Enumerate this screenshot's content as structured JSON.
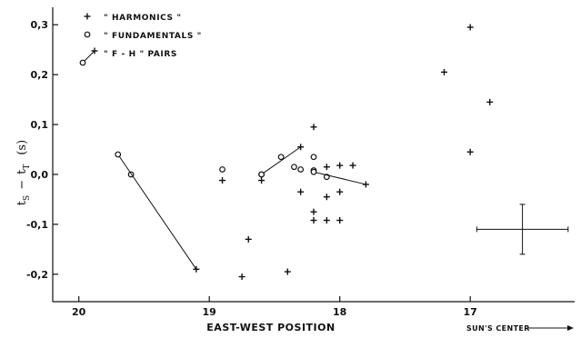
{
  "chart_data": {
    "type": "scatter",
    "title": "",
    "xlabel": "EAST-WEST POSITION",
    "ylabel": "t_S - t_T (s)",
    "ylabel_parts": {
      "main": "t",
      "sub1": "S",
      "minus": "−",
      "main2": "t",
      "sub2": "T",
      "unit": "(s)"
    },
    "x_note": "SUN'S CENTER",
    "xlim": [
      20.2,
      16.2
    ],
    "ylim": [
      -0.255,
      0.335
    ],
    "x_ticks": [
      {
        "value": 20,
        "label": "20"
      },
      {
        "value": 19,
        "label": "19"
      },
      {
        "value": 18,
        "label": "18"
      },
      {
        "value": 17,
        "label": "17"
      }
    ],
    "y_ticks": [
      {
        "value": 0.3,
        "label": "0,3"
      },
      {
        "value": 0.2,
        "label": "0,2"
      },
      {
        "value": 0.1,
        "label": "0,1"
      },
      {
        "value": 0.0,
        "label": "0,0"
      },
      {
        "value": -0.1,
        "label": "-0,1"
      },
      {
        "value": -0.2,
        "label": "-0,2"
      }
    ],
    "legend": [
      {
        "marker": "plus",
        "label": "\" HARMONICS \""
      },
      {
        "marker": "circle",
        "label": "\" FUNDAMENTALS \""
      },
      {
        "marker": "pair",
        "label": "\" F - H \" PAIRS"
      }
    ],
    "legend_placement": "top-left",
    "series": [
      {
        "name": "HARMONICS",
        "marker": "plus",
        "points": [
          [
            17.0,
            0.295
          ],
          [
            17.2,
            0.205
          ],
          [
            16.85,
            0.145
          ],
          [
            17.0,
            0.045
          ],
          [
            18.2,
            0.095
          ],
          [
            18.1,
            0.015
          ],
          [
            18.0,
            0.018
          ],
          [
            17.9,
            0.018
          ],
          [
            18.6,
            -0.012
          ],
          [
            18.9,
            -0.012
          ],
          [
            18.3,
            -0.035
          ],
          [
            18.0,
            -0.035
          ],
          [
            18.1,
            -0.045
          ],
          [
            18.2,
            -0.075
          ],
          [
            18.2,
            -0.092
          ],
          [
            18.1,
            -0.092
          ],
          [
            18.0,
            -0.092
          ],
          [
            18.7,
            -0.13
          ],
          [
            18.4,
            -0.195
          ],
          [
            18.75,
            -0.205
          ]
        ]
      },
      {
        "name": "FUNDAMENTALS",
        "marker": "circle",
        "points": [
          [
            18.2,
            0.035
          ],
          [
            18.45,
            0.035
          ],
          [
            18.35,
            0.015
          ],
          [
            18.3,
            0.01
          ],
          [
            18.6,
            0.0
          ],
          [
            18.2,
            0.008
          ],
          [
            18.9,
            0.01
          ],
          [
            18.1,
            -0.005
          ],
          [
            19.6,
            0.0
          ]
        ]
      },
      {
        "name": "F-H PAIRS",
        "marker": "pair",
        "pairs": [
          {
            "f": [
              19.7,
              0.04
            ],
            "h": [
              19.1,
              -0.19
            ]
          },
          {
            "f": [
              18.6,
              0.0
            ],
            "h": [
              18.3,
              0.055
            ]
          },
          {
            "f": [
              18.2,
              0.005
            ],
            "h": [
              17.8,
              -0.02
            ]
          }
        ]
      }
    ],
    "error_bar": {
      "x": 16.6,
      "y": -0.11,
      "x_error": 0.35,
      "y_error": 0.05
    },
    "grid": false
  }
}
